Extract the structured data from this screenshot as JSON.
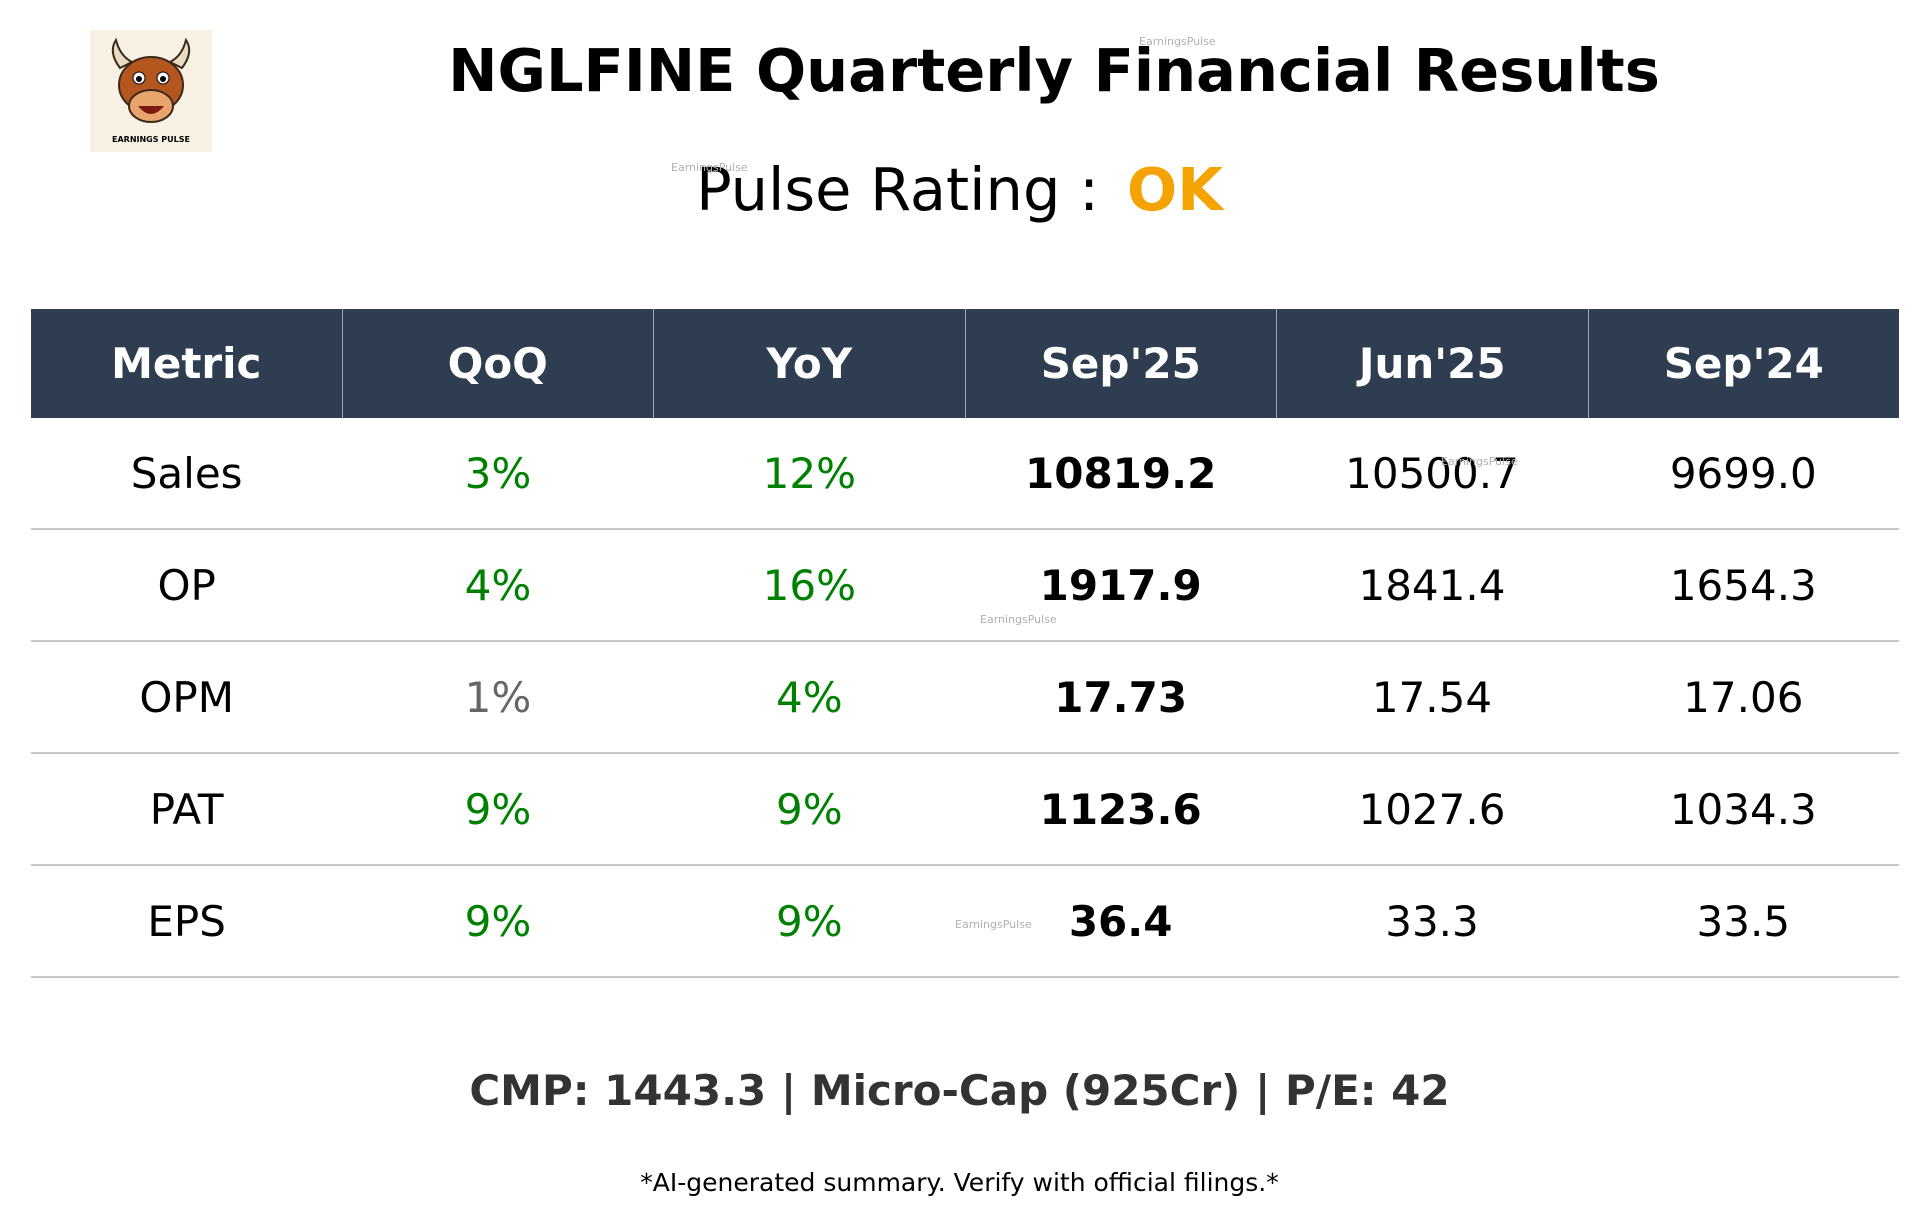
{
  "logo": {
    "caption": "EARNINGS PULSE"
  },
  "header": {
    "title": "NGLFINE Quarterly Financial Results"
  },
  "rating": {
    "label": "Pulse Rating :",
    "value": "OK",
    "color": "#f5a300"
  },
  "watermark": "EarningsPulse",
  "table": {
    "columns": [
      "Metric",
      "QoQ",
      "YoY",
      "Sep'25",
      "Jun'25",
      "Sep'24"
    ],
    "rows": [
      [
        "Sales",
        "3%",
        "12%",
        "10819.2",
        "10500.7",
        "9699.0"
      ],
      [
        "OP",
        "4%",
        "16%",
        "1917.9",
        "1841.4",
        "1654.3"
      ],
      [
        "OPM",
        "1%",
        "4%",
        "17.73",
        "17.54",
        "17.06"
      ],
      [
        "PAT",
        "9%",
        "9%",
        "1123.6",
        "1027.6",
        "1034.3"
      ],
      [
        "EPS",
        "9%",
        "9%",
        "36.4",
        "33.3",
        "33.5"
      ]
    ],
    "change_colors": [
      [
        "#008000",
        "#008000"
      ],
      [
        "#008000",
        "#008000"
      ],
      [
        "#666666",
        "#008000"
      ],
      [
        "#008000",
        "#008000"
      ],
      [
        "#008000",
        "#008000"
      ]
    ]
  },
  "footer": {
    "summary": "CMP: 1443.3 | Micro-Cap (925Cr) | P/E: 42",
    "disclaimer": "*AI-generated summary. Verify with official filings.*"
  }
}
